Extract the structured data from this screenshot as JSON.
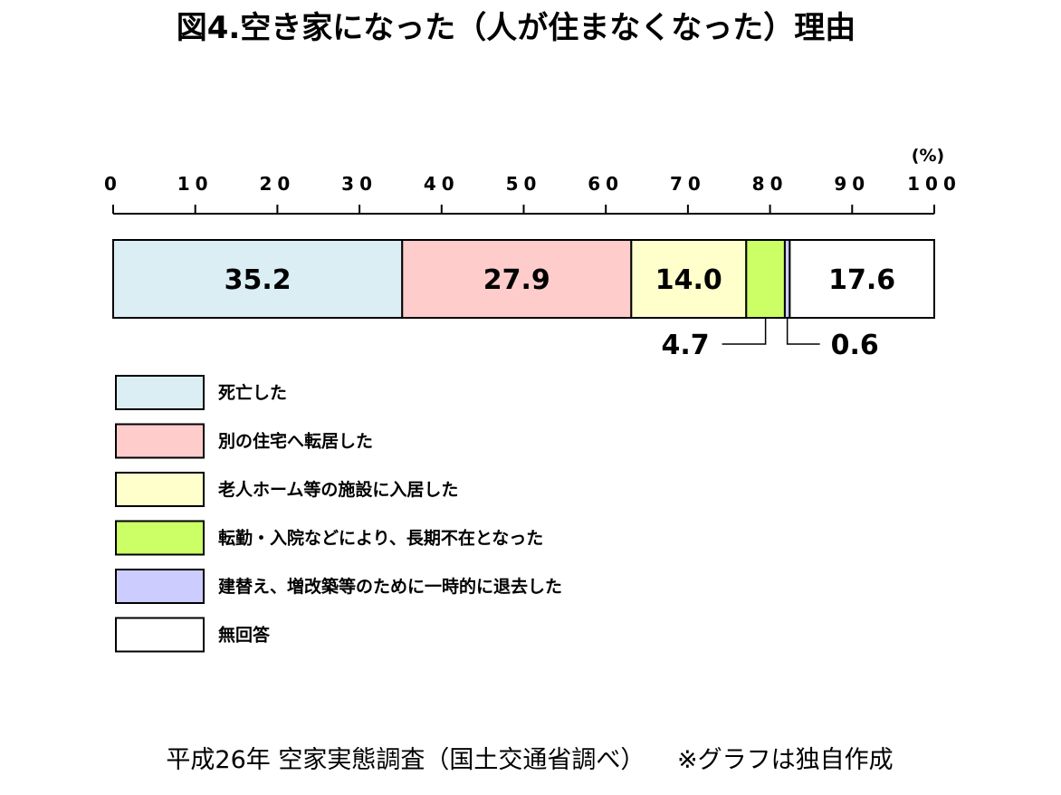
{
  "chart_data": {
    "type": "bar",
    "orientation": "horizontal-stacked",
    "title": "図4.空き家になった（人が住まなくなった）理由",
    "unit_label": "(%)",
    "xlim": [
      0,
      100
    ],
    "ticks": [
      "0",
      "10",
      "20",
      "30",
      "40",
      "50",
      "60",
      "70",
      "80",
      "90",
      "100"
    ],
    "series": [
      {
        "name": "死亡した",
        "value": 35.2,
        "value_label": "35.2",
        "color": "#daeef3"
      },
      {
        "name": "別の住宅へ転居した",
        "value": 27.9,
        "value_label": "27.9",
        "color": "#ffcccc"
      },
      {
        "name": "老人ホーム等の施設に入居した",
        "value": 14.0,
        "value_label": "14.0",
        "color": "#ffffcc"
      },
      {
        "name": "転勤・入院などにより、長期不在となった",
        "value": 4.7,
        "value_label": "4.7",
        "color": "#ccff66"
      },
      {
        "name": "建替え、増改築等のために一時的に退去した",
        "value": 0.6,
        "value_label": "0.6",
        "color": "#ccccff"
      },
      {
        "name": "無回答",
        "value": 17.6,
        "value_label": "17.6",
        "color": "#ffffff"
      }
    ],
    "footer": "平成26年 空家実態調査（国土交通省調べ） 　※グラフは独自作成"
  }
}
